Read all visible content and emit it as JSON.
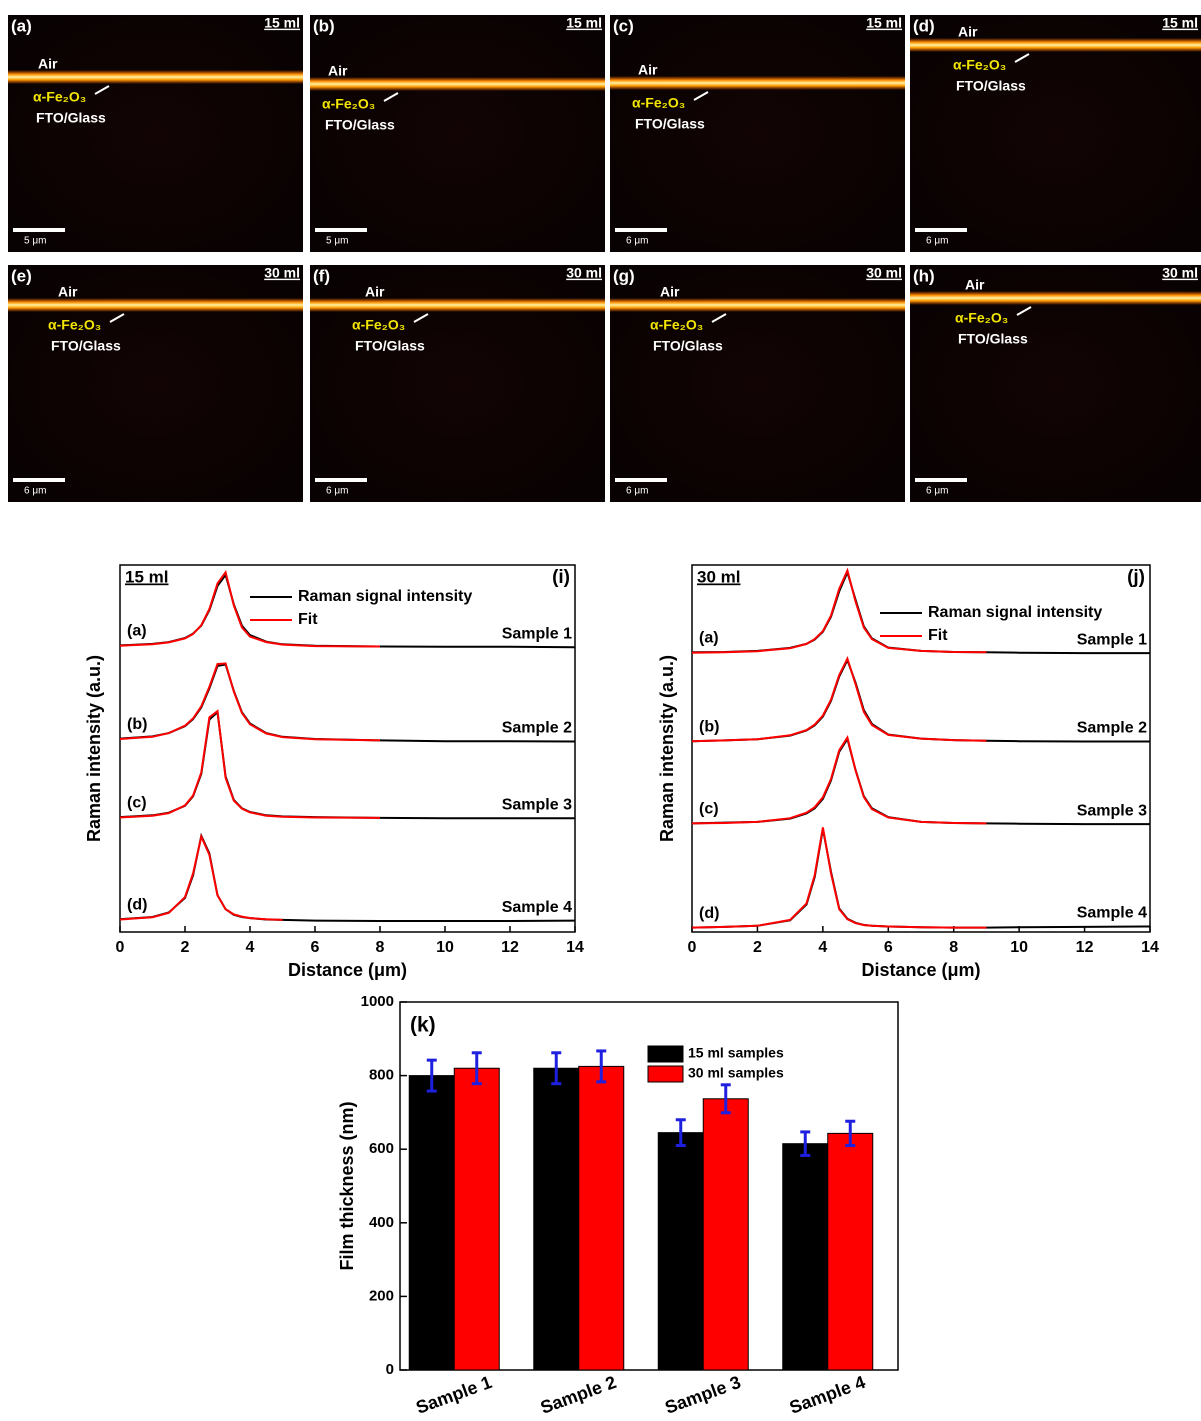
{
  "images": [
    {
      "label": "(a)",
      "volume": "15 ml",
      "air": "Air",
      "film": "α-Fe₂O₃",
      "substrate": "FTO/Glass",
      "scale_bar": "5 μm"
    },
    {
      "label": "(b)",
      "volume": "15 ml",
      "air": "Air",
      "film": "α-Fe₂O₃",
      "substrate": "FTO/Glass",
      "scale_bar": "5 μm"
    },
    {
      "label": "(c)",
      "volume": "15 ml",
      "air": "Air",
      "film": "α-Fe₂O₃",
      "substrate": "FTO/Glass",
      "scale_bar": "6 μm"
    },
    {
      "label": "(d)",
      "volume": "15 ml",
      "air": "Air",
      "film": "α-Fe₂O₃",
      "substrate": "FTO/Glass",
      "scale_bar": "6 μm"
    },
    {
      "label": "(e)",
      "volume": "30 ml",
      "air": "Air",
      "film": "α-Fe₂O₃",
      "substrate": "FTO/Glass",
      "scale_bar": "6 μm"
    },
    {
      "label": "(f)",
      "volume": "30 ml",
      "air": "Air",
      "film": "α-Fe₂O₃",
      "substrate": "FTO/Glass",
      "scale_bar": "6 μm"
    },
    {
      "label": "(g)",
      "volume": "30 ml",
      "air": "Air",
      "film": "α-Fe₂O₃",
      "substrate": "FTO/Glass",
      "scale_bar": "6 μm"
    },
    {
      "label": "(h)",
      "volume": "30 ml",
      "air": "Air",
      "film": "α-Fe₂O₃",
      "substrate": "FTO/Glass",
      "scale_bar": "6 μm"
    }
  ],
  "chart_data": [
    {
      "type": "line",
      "panel_label": "(i)",
      "condition": "15 ml",
      "xlabel": "Distance (μm)",
      "ylabel": "Raman intensity (a.u.)",
      "x": [
        0,
        1,
        1.5,
        2,
        2.25,
        2.5,
        2.75,
        3,
        3.25,
        3.5,
        3.75,
        4,
        4.5,
        5,
        6,
        8,
        10,
        12,
        14
      ],
      "xlim": [
        0,
        14
      ],
      "xticks": [
        0,
        2,
        4,
        6,
        8,
        10,
        12,
        14
      ],
      "ylim": [
        0,
        10
      ],
      "curve_labels": [
        "(a)",
        "(b)",
        "(c)",
        "(d)"
      ],
      "sample_labels": [
        "Sample 1",
        "Sample 2",
        "Sample 3",
        "Sample 4"
      ],
      "series": [
        {
          "name": "Raman signal intensity",
          "color": "#000000",
          "curves": [
            [
              7.81,
              7.85,
              7.9,
              8.01,
              8.13,
              8.35,
              8.77,
              9.43,
              9.73,
              8.93,
              8.35,
              8.09,
              7.91,
              7.84,
              7.8,
              7.78,
              7.77,
              7.77,
              7.76
            ],
            [
              5.27,
              5.33,
              5.42,
              5.61,
              5.8,
              6.12,
              6.64,
              7.25,
              7.29,
              6.57,
              5.99,
              5.68,
              5.42,
              5.32,
              5.26,
              5.22,
              5.2,
              5.2,
              5.19
            ],
            [
              3.13,
              3.18,
              3.25,
              3.44,
              3.7,
              4.31,
              5.79,
              5.99,
              4.24,
              3.6,
              3.37,
              3.27,
              3.18,
              3.15,
              3.13,
              3.11,
              3.1,
              3.1,
              3.1
            ],
            [
              0.35,
              0.41,
              0.53,
              0.93,
              1.55,
              2.62,
              2.14,
              1.0,
              0.62,
              0.47,
              0.41,
              0.38,
              0.34,
              0.33,
              0.31,
              0.3,
              0.3,
              0.3,
              0.31
            ]
          ]
        },
        {
          "name": "Fit",
          "color": "#ff0000",
          "curves": [
            [
              7.8,
              7.84,
              7.89,
              8.0,
              8.12,
              8.36,
              8.8,
              9.5,
              9.8,
              8.9,
              8.3,
              8.05,
              7.9,
              7.83,
              7.79,
              7.78,
              null,
              null,
              null
            ],
            [
              5.26,
              5.32,
              5.42,
              5.62,
              5.82,
              6.15,
              6.68,
              7.3,
              7.32,
              6.55,
              5.97,
              5.66,
              5.41,
              5.31,
              5.25,
              5.22,
              null,
              null,
              null
            ],
            [
              3.12,
              3.17,
              3.24,
              3.45,
              3.72,
              4.35,
              5.85,
              6.02,
              4.2,
              3.58,
              3.36,
              3.26,
              3.17,
              3.14,
              3.12,
              3.11,
              null,
              null,
              null
            ],
            [
              0.34,
              0.4,
              0.52,
              0.95,
              1.6,
              2.6,
              2.1,
              1.0,
              0.62,
              0.48,
              0.42,
              0.38,
              0.35,
              0.33,
              null,
              null,
              null,
              null,
              null
            ]
          ]
        }
      ]
    },
    {
      "type": "line",
      "panel_label": "(j)",
      "condition": "30 ml",
      "xlabel": "Distance (μm)",
      "ylabel": "Raman intensity (a.u.)",
      "x": [
        0,
        1,
        2,
        3,
        3.5,
        3.75,
        4,
        4.25,
        4.5,
        4.75,
        5,
        5.25,
        5.5,
        6,
        7,
        8,
        9,
        10,
        12,
        14
      ],
      "xlim": [
        0,
        14
      ],
      "xticks": [
        0,
        2,
        4,
        6,
        8,
        10,
        12,
        14
      ],
      "ylim": [
        0,
        10
      ],
      "curve_labels": [
        "(a)",
        "(b)",
        "(c)",
        "(d)"
      ],
      "sample_labels": [
        "Sample 1",
        "Sample 2",
        "Sample 3",
        "Sample 4"
      ],
      "series": [
        {
          "name": "Raman signal intensity",
          "color": "#000000",
          "curves": [
            [
              7.62,
              7.63,
              7.66,
              7.74,
              7.85,
              7.97,
              8.18,
              8.59,
              9.28,
              9.8,
              9.05,
              8.33,
              8.0,
              7.75,
              7.66,
              7.63,
              7.62,
              7.61,
              7.6,
              7.6
            ],
            [
              5.2,
              5.22,
              5.25,
              5.35,
              5.49,
              5.63,
              5.87,
              6.3,
              6.96,
              7.41,
              6.79,
              6.05,
              5.67,
              5.38,
              5.27,
              5.23,
              5.21,
              5.2,
              5.19,
              5.19
            ],
            [
              2.96,
              2.98,
              3.0,
              3.09,
              3.23,
              3.37,
              3.63,
              4.13,
              4.91,
              5.26,
              4.41,
              3.7,
              3.37,
              3.13,
              3.0,
              2.97,
              2.96,
              2.95,
              2.94,
              2.94
            ],
            [
              0.12,
              0.14,
              0.17,
              0.32,
              0.75,
              1.5,
              2.81,
              1.64,
              0.64,
              0.36,
              0.25,
              0.19,
              0.17,
              0.15,
              0.13,
              0.12,
              0.12,
              0.13,
              0.14,
              0.15
            ]
          ]
        },
        {
          "name": "Fit",
          "color": "#ff0000",
          "curves": [
            [
              7.61,
              7.62,
              7.65,
              7.73,
              7.85,
              7.98,
              8.2,
              8.62,
              9.35,
              9.85,
              9.0,
              8.3,
              7.98,
              7.74,
              7.66,
              7.63,
              7.62,
              null,
              null,
              null
            ],
            [
              5.2,
              5.22,
              5.25,
              5.36,
              5.5,
              5.65,
              5.9,
              6.33,
              7.0,
              7.45,
              6.75,
              6.0,
              5.64,
              5.37,
              5.27,
              5.23,
              5.21,
              null,
              null,
              null
            ],
            [
              2.96,
              2.97,
              3.0,
              3.1,
              3.25,
              3.4,
              3.67,
              4.17,
              4.95,
              5.3,
              4.4,
              3.68,
              3.35,
              3.12,
              3.0,
              2.97,
              2.96,
              null,
              null,
              null
            ],
            [
              0.12,
              0.14,
              0.17,
              0.33,
              0.78,
              1.55,
              2.85,
              1.6,
              0.62,
              0.35,
              0.24,
              0.19,
              0.17,
              0.15,
              0.13,
              0.12,
              0.12,
              null,
              null,
              null
            ]
          ]
        }
      ]
    },
    {
      "type": "bar",
      "panel_label": "(k)",
      "ylabel": "Film thickness (nm)",
      "categories": [
        "Sample 1",
        "Sample 2",
        "Sample 3",
        "Sample 4"
      ],
      "ylim": [
        0,
        1000
      ],
      "yticks": [
        0,
        200,
        400,
        600,
        800,
        1000
      ],
      "error_color": "#1f1fe0",
      "series": [
        {
          "name": "15 ml samples",
          "color": "#000000",
          "values": [
            800,
            820,
            645,
            615
          ],
          "errors": [
            42,
            42,
            35,
            32
          ]
        },
        {
          "name": "30 ml samples",
          "color": "#ff0000",
          "values": [
            820,
            825,
            737,
            643
          ],
          "errors": [
            42,
            42,
            38,
            33
          ]
        }
      ]
    }
  ]
}
